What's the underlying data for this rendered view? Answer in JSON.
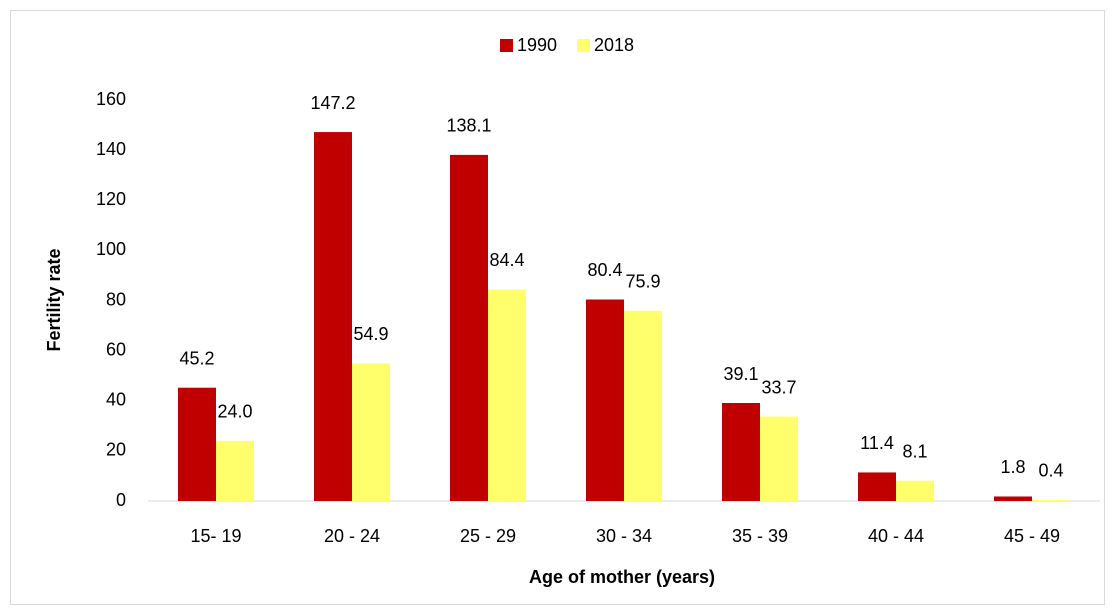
{
  "chart_data": {
    "type": "bar",
    "x_label": "Age of mother (years)",
    "y_label": "Fertility rate",
    "categories": [
      "15- 19",
      "20 - 24",
      "25 - 29",
      "30 - 34",
      "35 - 39",
      "40 - 44",
      "45 - 49"
    ],
    "series": [
      {
        "name": "1990",
        "color": "#c00000",
        "values": [
          45.2,
          147.2,
          138.1,
          80.4,
          39.1,
          11.4,
          1.8
        ],
        "value_labels": [
          "45.2",
          "147.2",
          "138.1",
          "80.4",
          "39.1",
          "11.4",
          "1.8"
        ]
      },
      {
        "name": "2018",
        "color": "#ffff6b",
        "values": [
          24,
          54.9,
          84.4,
          75.9,
          33.7,
          8.1,
          0.4
        ],
        "value_labels": [
          "24.0",
          "54.9",
          "84.4",
          "75.9",
          "33.7",
          "8.1",
          "0.4"
        ]
      }
    ],
    "ylim": [
      0,
      160
    ],
    "yticks": [
      0,
      20,
      40,
      60,
      80,
      100,
      120,
      140,
      160
    ],
    "grid": false,
    "legend": "top"
  }
}
